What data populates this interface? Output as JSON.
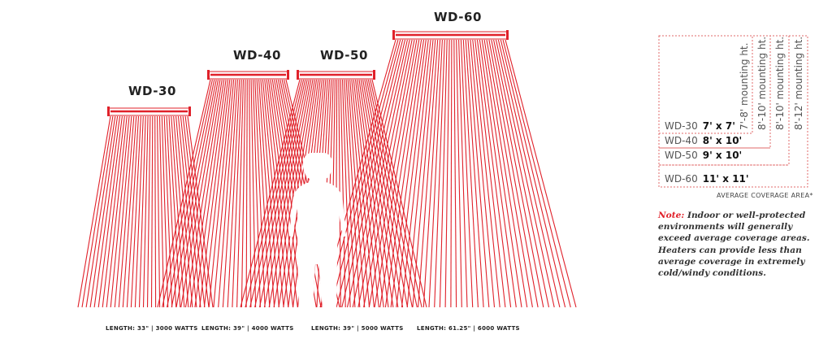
{
  "heaters": [
    {
      "model": "WD-30",
      "spec": "LENGTH: 33\" | 3000 WATTS"
    },
    {
      "model": "WD-40",
      "spec": "LENGTH: 39\" | 4000 WATTS"
    },
    {
      "model": "WD-50",
      "spec": "LENGTH: 39\" | 5000 WATTS"
    },
    {
      "model": "WD-60",
      "spec": "LENGTH: 61.25\" | 6000 WATTS"
    }
  ],
  "legend": {
    "rows": [
      {
        "model": "WD-30",
        "size": "7' x 7'",
        "mounting": "7'-8' mounting ht."
      },
      {
        "model": "WD-40",
        "size": "8' x 10'",
        "mounting": "8'-10' mounting ht."
      },
      {
        "model": "WD-50",
        "size": "9' x 10'",
        "mounting": "8'-10' mounting ht."
      },
      {
        "model": "WD-60",
        "size": "11' x 11'",
        "mounting": "8'-12' mounting ht."
      }
    ],
    "caption": "AVERAGE COVERAGE AREA*"
  },
  "note": {
    "lead": "Note:",
    "text": "Indoor or well-protected environments will generally exceed average coverage areas. Heaters can provide less than average coverage in extremely cold/windy conditions."
  },
  "colors": {
    "ray": "#e0212a",
    "dashed": "#e06a6a",
    "person": "#ffffff"
  }
}
